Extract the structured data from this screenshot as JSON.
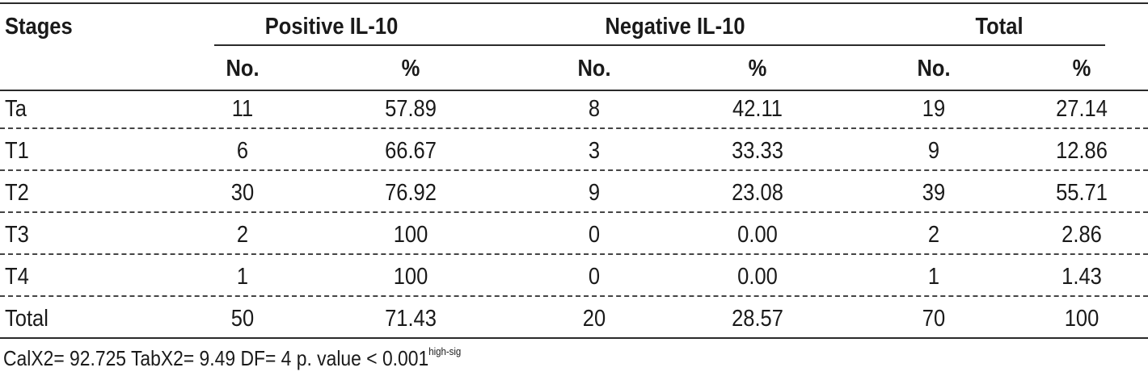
{
  "table": {
    "corner": "Stages",
    "groups": [
      "Positive IL-10",
      "Negative IL-10",
      "Total"
    ],
    "subheaders": [
      "No.",
      "%",
      "No.",
      "%",
      "No.",
      "%"
    ],
    "rows": [
      [
        "Ta",
        "11",
        "57.89",
        "8",
        "42.11",
        "19",
        "27.14"
      ],
      [
        "T1",
        "6",
        "66.67",
        "3",
        "33.33",
        "9",
        "12.86"
      ],
      [
        "T2",
        "30",
        "76.92",
        "9",
        "23.08",
        "39",
        "55.71"
      ],
      [
        "T3",
        "2",
        "100",
        "0",
        "0.00",
        "2",
        "2.86"
      ],
      [
        "T4",
        "1",
        "100",
        "0",
        "0.00",
        "1",
        "1.43"
      ],
      [
        "Total",
        "50",
        "71.43",
        "20",
        "28.57",
        "70",
        "100"
      ]
    ]
  },
  "footnote": {
    "text": "CalX2= 92.725  TabX2= 9.49  DF= 4 p. value < 0.001",
    "superscript": "high-sig"
  }
}
